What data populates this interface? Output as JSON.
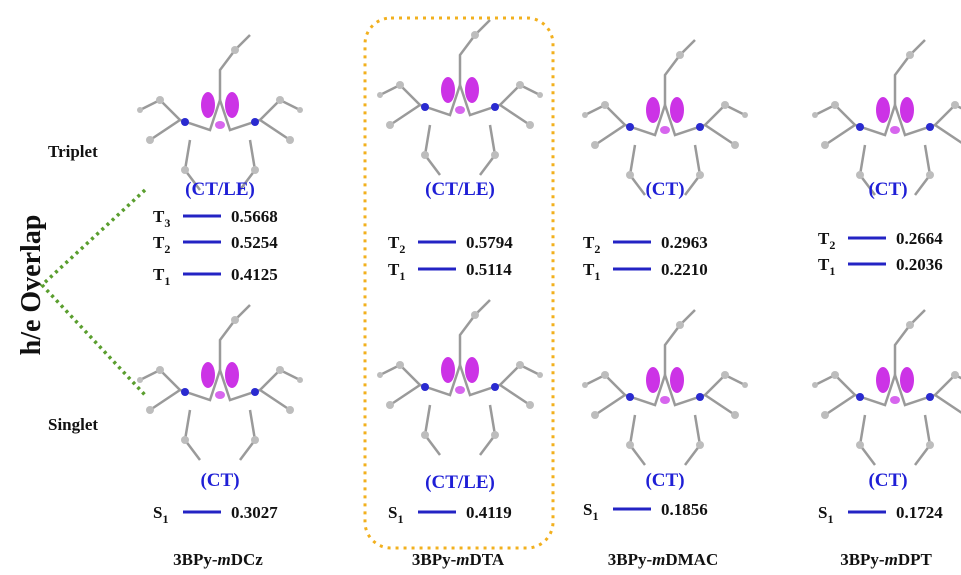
{
  "axis_label": "h/e Overlap",
  "row_labels": {
    "triplet": "Triplet",
    "singlet": "Singlet"
  },
  "columns": [
    {
      "name": {
        "prefix": "3BPy-",
        "italic": "m",
        "suffix": "DCz"
      },
      "triplet_type": "(CT/LE)",
      "triplet_levels": [
        {
          "state": "T",
          "index": "3",
          "value": "0.5668"
        },
        {
          "state": "T",
          "index": "2",
          "value": "0.5254"
        },
        {
          "state": "T",
          "index": "1",
          "value": "0.4125"
        }
      ],
      "singlet_type": "(CT)",
      "singlet_levels": [
        {
          "state": "S",
          "index": "1",
          "value": "0.3027"
        }
      ]
    },
    {
      "name": {
        "prefix": "3BPy-",
        "italic": "m",
        "suffix": "DTA"
      },
      "triplet_type": "(CT/LE)",
      "triplet_levels": [
        {
          "state": "T",
          "index": "2",
          "value": "0.5794"
        },
        {
          "state": "T",
          "index": "1",
          "value": "0.5114"
        }
      ],
      "singlet_type": "(CT/LE)",
      "singlet_levels": [
        {
          "state": "S",
          "index": "1",
          "value": "0.4119"
        }
      ]
    },
    {
      "name": {
        "prefix": "3BPy-",
        "italic": "m",
        "suffix": "DMAC"
      },
      "triplet_type": "(CT)",
      "triplet_levels": [
        {
          "state": "T",
          "index": "2",
          "value": "0.2963"
        },
        {
          "state": "T",
          "index": "1",
          "value": "0.2210"
        }
      ],
      "singlet_type": "(CT)",
      "singlet_levels": [
        {
          "state": "S",
          "index": "1",
          "value": "0.1856"
        }
      ]
    },
    {
      "name": {
        "prefix": "3BPy-",
        "italic": "m",
        "suffix": "DPT"
      },
      "triplet_type": "(CT)",
      "triplet_levels": [
        {
          "state": "T",
          "index": "2",
          "value": "0.2664"
        },
        {
          "state": "T",
          "index": "1",
          "value": "0.2036"
        }
      ],
      "singlet_type": "(CT)",
      "singlet_levels": [
        {
          "state": "S",
          "index": "1",
          "value": "0.1724"
        }
      ]
    }
  ]
}
